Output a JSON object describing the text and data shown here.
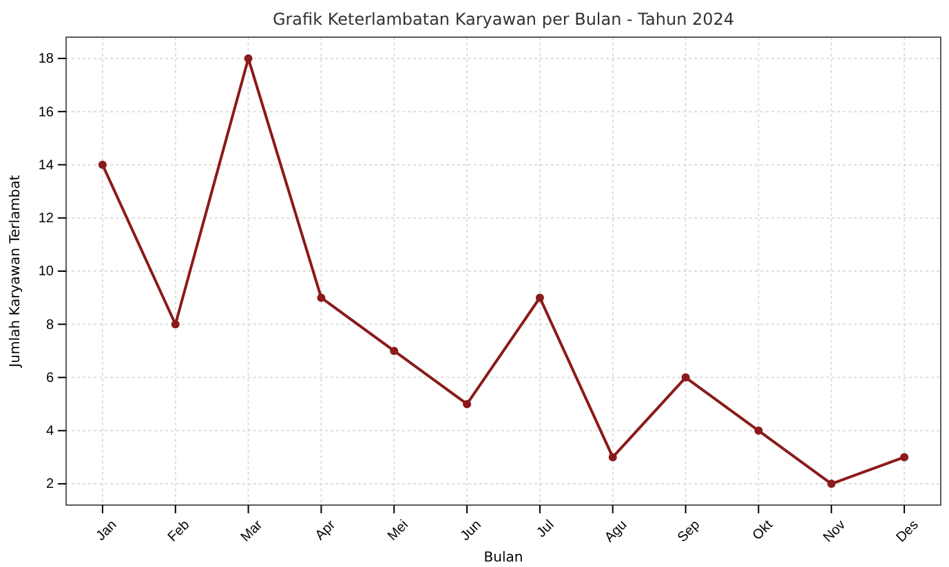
{
  "chart_data": {
    "type": "line",
    "title": "Grafik Keterlambatan Karyawan per Bulan - Tahun 2024",
    "xlabel": "Bulan",
    "ylabel": "Jumlah Karyawan Terlambat",
    "categories": [
      "Jan",
      "Feb",
      "Mar",
      "Apr",
      "Mei",
      "Jun",
      "Jul",
      "Agu",
      "Sep",
      "Okt",
      "Nov",
      "Des"
    ],
    "series": [
      {
        "color": "#8b1a1a",
        "values": [
          14,
          8,
          18,
          9,
          7,
          5,
          9,
          3,
          6,
          4,
          2,
          3
        ]
      }
    ],
    "ylim": [
      1.2,
      18.8
    ],
    "yticks": [
      2,
      4,
      6,
      8,
      10,
      12,
      14,
      16,
      18
    ],
    "grid": true,
    "marker": "circle",
    "line_style": "solid"
  }
}
